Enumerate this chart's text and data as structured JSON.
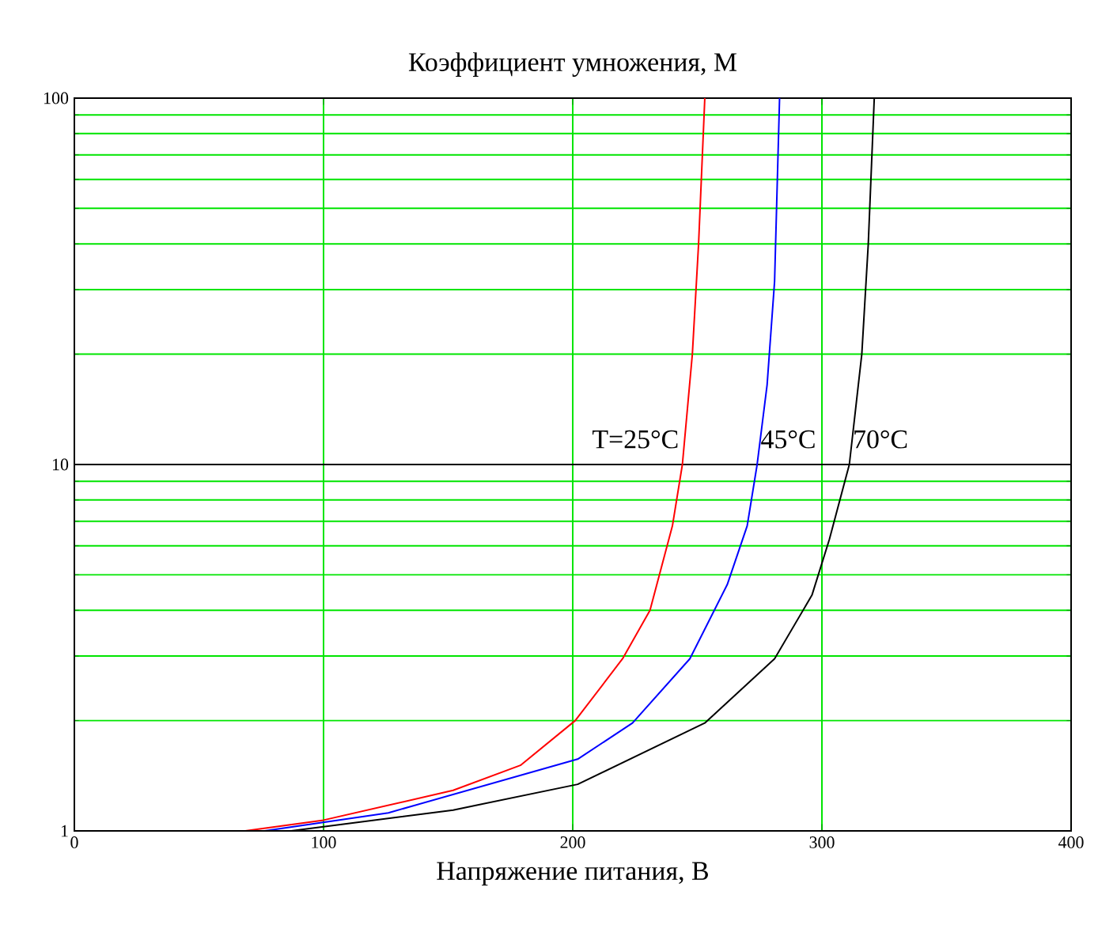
{
  "chart_data": {
    "type": "line",
    "title": "Коэффициент умножения, M",
    "xlabel": "Напряжение питания, В",
    "log": "y",
    "grid": true,
    "marker": "none",
    "line_style": "solid",
    "ref_lines": [
      {
        "axis": "y",
        "value": 10,
        "color": "#000000"
      }
    ],
    "xlim": [
      0,
      400
    ],
    "ylim": [
      1,
      100
    ],
    "xticks": [
      0,
      100,
      200,
      300,
      400
    ],
    "yticks": [
      1,
      10,
      100
    ],
    "series": [
      {
        "name": "T=25°C",
        "color": "#ff0000",
        "x": [
          0,
          68.6,
          100,
          152,
          179,
          201,
          220,
          231,
          240,
          244,
          248,
          250.5,
          253
        ],
        "values": [
          1,
          1.0,
          1.07,
          1.29,
          1.51,
          2.0,
          2.95,
          4.0,
          6.8,
          10,
          20,
          40,
          100
        ]
      },
      {
        "name": "45°C",
        "color": "#0000ff",
        "x": [
          0,
          76.4,
          126,
          202,
          224,
          247,
          262,
          270,
          274,
          278,
          281,
          283
        ],
        "values": [
          1,
          1.0,
          1.12,
          1.57,
          1.97,
          2.95,
          4.7,
          6.8,
          10,
          16.5,
          31.6,
          100
        ]
      },
      {
        "name": "70°C",
        "color": "#000000",
        "x": [
          0,
          87,
          152,
          202,
          253,
          281,
          296,
          303,
          311,
          316,
          318.6,
          321
        ],
        "values": [
          1,
          1.0,
          1.14,
          1.34,
          1.97,
          2.95,
          4.4,
          6.25,
          10,
          20,
          40,
          100
        ]
      }
    ]
  }
}
